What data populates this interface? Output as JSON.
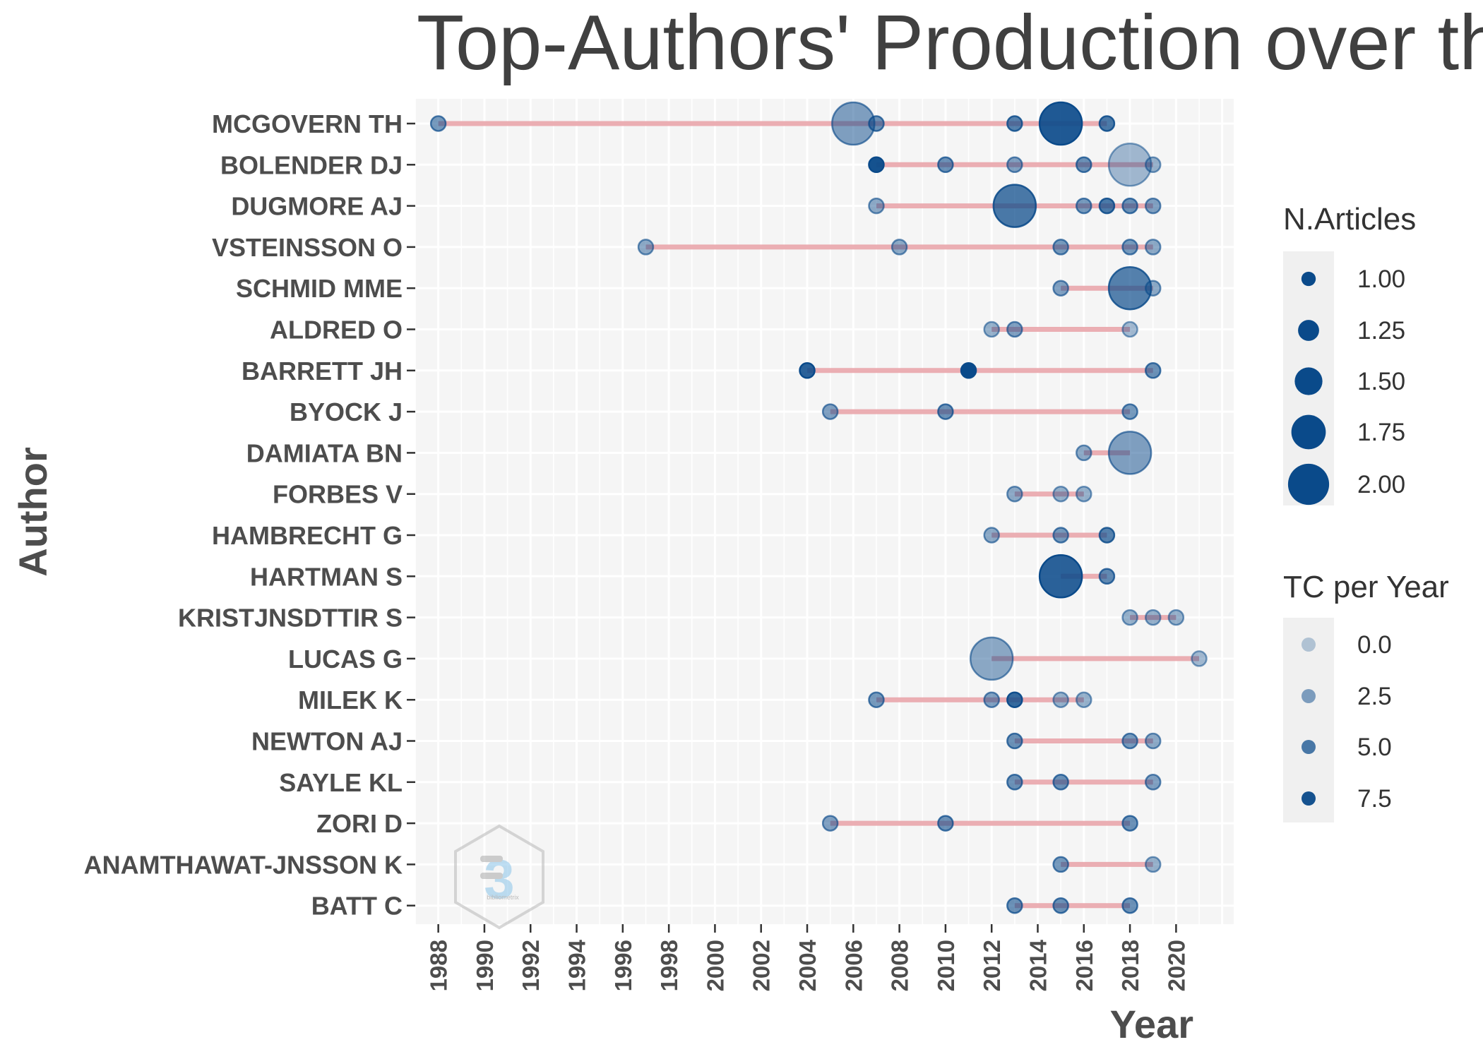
{
  "chart_data": {
    "type": "scatter",
    "title": "Top-Authors' Production over the T",
    "xlabel": "Year",
    "ylabel": "Author",
    "xlim": [
      1987,
      2022.5
    ],
    "x_ticks": [
      1988,
      1990,
      1992,
      1994,
      1996,
      1998,
      2000,
      2002,
      2004,
      2006,
      2008,
      2010,
      2012,
      2014,
      2016,
      2018,
      2020
    ],
    "authors": [
      {
        "name": "MCGOVERN TH",
        "range": [
          1988,
          2017
        ],
        "points": [
          {
            "year": 1988,
            "articles": 1,
            "tc": 3.0
          },
          {
            "year": 2006,
            "articles": 2,
            "tc": 2.5
          },
          {
            "year": 2007,
            "articles": 1,
            "tc": 3.5
          },
          {
            "year": 2013,
            "articles": 1,
            "tc": 4.5
          },
          {
            "year": 2015,
            "articles": 2,
            "tc": 7.0
          },
          {
            "year": 2017,
            "articles": 1,
            "tc": 5.0
          }
        ]
      },
      {
        "name": "BOLENDER DJ",
        "range": [
          2007,
          2019
        ],
        "points": [
          {
            "year": 2007,
            "articles": 1,
            "tc": 7.5
          },
          {
            "year": 2010,
            "articles": 1,
            "tc": 3.5
          },
          {
            "year": 2013,
            "articles": 1,
            "tc": 2.5
          },
          {
            "year": 2016,
            "articles": 1,
            "tc": 3.5
          },
          {
            "year": 2018,
            "articles": 2,
            "tc": 1.0
          },
          {
            "year": 2019,
            "articles": 1,
            "tc": 1.5
          }
        ]
      },
      {
        "name": "DUGMORE AJ",
        "range": [
          2007,
          2019
        ],
        "points": [
          {
            "year": 2007,
            "articles": 1,
            "tc": 2.0
          },
          {
            "year": 2013,
            "articles": 2,
            "tc": 5.0
          },
          {
            "year": 2016,
            "articles": 1,
            "tc": 3.0
          },
          {
            "year": 2017,
            "articles": 1,
            "tc": 5.0
          },
          {
            "year": 2018,
            "articles": 1,
            "tc": 3.5
          },
          {
            "year": 2019,
            "articles": 1,
            "tc": 2.5
          }
        ]
      },
      {
        "name": "VSTEINSSON O",
        "range": [
          1997,
          2019
        ],
        "points": [
          {
            "year": 1997,
            "articles": 1,
            "tc": 2.0
          },
          {
            "year": 2008,
            "articles": 1,
            "tc": 2.0
          },
          {
            "year": 2015,
            "articles": 1,
            "tc": 3.0
          },
          {
            "year": 2018,
            "articles": 1,
            "tc": 3.0
          },
          {
            "year": 2019,
            "articles": 1,
            "tc": 2.0
          }
        ]
      },
      {
        "name": "SCHMID MME",
        "range": [
          2015,
          2019
        ],
        "points": [
          {
            "year": 2015,
            "articles": 1,
            "tc": 2.5
          },
          {
            "year": 2018,
            "articles": 2,
            "tc": 4.5
          },
          {
            "year": 2019,
            "articles": 1,
            "tc": 2.0
          }
        ]
      },
      {
        "name": "ALDRED O",
        "range": [
          2012,
          2018
        ],
        "points": [
          {
            "year": 2012,
            "articles": 1,
            "tc": 1.5
          },
          {
            "year": 2013,
            "articles": 1,
            "tc": 2.5
          },
          {
            "year": 2018,
            "articles": 1,
            "tc": 1.0
          }
        ]
      },
      {
        "name": "BARRETT JH",
        "range": [
          2004,
          2019
        ],
        "points": [
          {
            "year": 2004,
            "articles": 1,
            "tc": 6.5
          },
          {
            "year": 2011,
            "articles": 1,
            "tc": 8.0
          },
          {
            "year": 2019,
            "articles": 1,
            "tc": 3.5
          }
        ]
      },
      {
        "name": "BYOCK J",
        "range": [
          2005,
          2018
        ],
        "points": [
          {
            "year": 2005,
            "articles": 1,
            "tc": 2.5
          },
          {
            "year": 2010,
            "articles": 1,
            "tc": 3.5
          },
          {
            "year": 2018,
            "articles": 1,
            "tc": 3.0
          }
        ]
      },
      {
        "name": "DAMIATA BN",
        "range": [
          2016,
          2018
        ],
        "points": [
          {
            "year": 2016,
            "articles": 1,
            "tc": 2.0
          },
          {
            "year": 2018,
            "articles": 2,
            "tc": 2.5
          }
        ]
      },
      {
        "name": "FORBES V",
        "range": [
          2013,
          2016
        ],
        "points": [
          {
            "year": 2013,
            "articles": 1,
            "tc": 2.0
          },
          {
            "year": 2015,
            "articles": 1,
            "tc": 1.5
          },
          {
            "year": 2016,
            "articles": 1,
            "tc": 1.5
          }
        ]
      },
      {
        "name": "HAMBRECHT G",
        "range": [
          2012,
          2017
        ],
        "points": [
          {
            "year": 2012,
            "articles": 1,
            "tc": 2.0
          },
          {
            "year": 2015,
            "articles": 1,
            "tc": 3.0
          },
          {
            "year": 2017,
            "articles": 1,
            "tc": 4.5
          }
        ]
      },
      {
        "name": "HARTMAN S",
        "range": [
          2015,
          2017
        ],
        "points": [
          {
            "year": 2015,
            "articles": 2,
            "tc": 6.5
          },
          {
            "year": 2017,
            "articles": 1,
            "tc": 4.0
          }
        ]
      },
      {
        "name": "KRISTJNSDTTIR S",
        "range": [
          2018,
          2020
        ],
        "points": [
          {
            "year": 2018,
            "articles": 1,
            "tc": 1.5
          },
          {
            "year": 2019,
            "articles": 1,
            "tc": 1.5
          },
          {
            "year": 2020,
            "articles": 1,
            "tc": 1.5
          }
        ]
      },
      {
        "name": "LUCAS G",
        "range": [
          2012,
          2021
        ],
        "points": [
          {
            "year": 2012,
            "articles": 2,
            "tc": 2.0
          },
          {
            "year": 2021,
            "articles": 1,
            "tc": 1.0
          }
        ]
      },
      {
        "name": "MILEK K",
        "range": [
          2007,
          2016
        ],
        "points": [
          {
            "year": 2007,
            "articles": 1,
            "tc": 3.0
          },
          {
            "year": 2012,
            "articles": 1,
            "tc": 2.5
          },
          {
            "year": 2013,
            "articles": 1,
            "tc": 6.0
          },
          {
            "year": 2015,
            "articles": 1,
            "tc": 1.5
          },
          {
            "year": 2016,
            "articles": 1,
            "tc": 1.5
          }
        ]
      },
      {
        "name": "NEWTON AJ",
        "range": [
          2013,
          2019
        ],
        "points": [
          {
            "year": 2013,
            "articles": 1,
            "tc": 3.5
          },
          {
            "year": 2018,
            "articles": 1,
            "tc": 3.0
          },
          {
            "year": 2019,
            "articles": 1,
            "tc": 2.0
          }
        ]
      },
      {
        "name": "SAYLE KL",
        "range": [
          2013,
          2019
        ],
        "points": [
          {
            "year": 2013,
            "articles": 1,
            "tc": 3.5
          },
          {
            "year": 2015,
            "articles": 1,
            "tc": 3.5
          },
          {
            "year": 2019,
            "articles": 1,
            "tc": 2.5
          }
        ]
      },
      {
        "name": "ZORI D",
        "range": [
          2005,
          2018
        ],
        "points": [
          {
            "year": 2005,
            "articles": 1,
            "tc": 2.5
          },
          {
            "year": 2010,
            "articles": 1,
            "tc": 3.5
          },
          {
            "year": 2018,
            "articles": 1,
            "tc": 3.5
          }
        ]
      },
      {
        "name": "ANAMTHAWAT-JNSSON K",
        "range": [
          2015,
          2019
        ],
        "points": [
          {
            "year": 2015,
            "articles": 1,
            "tc": 3.0
          },
          {
            "year": 2019,
            "articles": 1,
            "tc": 1.5
          }
        ]
      },
      {
        "name": "BATT C",
        "range": [
          2013,
          2018
        ],
        "points": [
          {
            "year": 2013,
            "articles": 1,
            "tc": 3.5
          },
          {
            "year": 2015,
            "articles": 1,
            "tc": 3.5
          },
          {
            "year": 2018,
            "articles": 1,
            "tc": 3.5
          }
        ]
      }
    ],
    "legend_size": {
      "title": "N.Articles",
      "labels": [
        "1.00",
        "1.25",
        "1.50",
        "1.75",
        "2.00"
      ],
      "values": [
        1.0,
        1.25,
        1.5,
        1.75,
        2.0
      ]
    },
    "legend_color": {
      "title": "TC per Year",
      "labels": [
        "0.0",
        "2.5",
        "5.0",
        "7.5"
      ],
      "values": [
        0.0,
        2.5,
        5.0,
        7.5
      ]
    },
    "grid": true,
    "legend_position": "right",
    "colors": {
      "panel": "#f5f5f5",
      "grid": "#ffffff",
      "segment": "#e8a0a6",
      "point": "#0a4a8a",
      "text": "#4d4d4d"
    },
    "watermark_text": "bibliometrix"
  }
}
